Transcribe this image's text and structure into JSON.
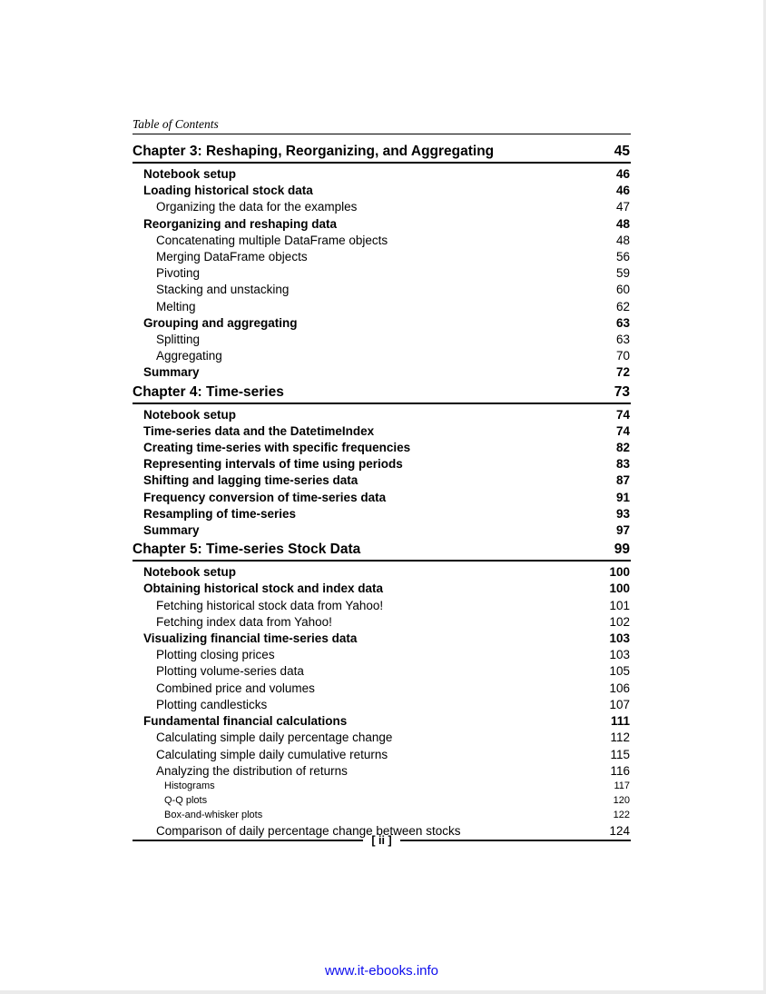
{
  "page": {
    "header_label": "Table of Contents",
    "footer_page_label": "[ ii ]",
    "footer_link": "www.it-ebooks.info",
    "text_color": "#000000",
    "link_color": "#0d0dee"
  },
  "toc": {
    "sections": [
      {
        "title": "Chapter 3: Reshaping, Reorganizing, and Aggregating",
        "page": "45",
        "entries": [
          {
            "level": 1,
            "label": "Notebook setup",
            "page": "46"
          },
          {
            "level": 1,
            "label": "Loading historical stock data",
            "page": "46"
          },
          {
            "level": 2,
            "label": "Organizing the data for the examples",
            "page": "47"
          },
          {
            "level": 1,
            "label": "Reorganizing and reshaping data",
            "page": "48"
          },
          {
            "level": 2,
            "label": "Concatenating multiple DataFrame objects",
            "page": "48"
          },
          {
            "level": 2,
            "label": "Merging DataFrame objects",
            "page": "56"
          },
          {
            "level": 2,
            "label": "Pivoting",
            "page": "59"
          },
          {
            "level": 2,
            "label": "Stacking and unstacking",
            "page": "60"
          },
          {
            "level": 2,
            "label": "Melting",
            "page": "62"
          },
          {
            "level": 1,
            "label": "Grouping and aggregating",
            "page": "63"
          },
          {
            "level": 2,
            "label": "Splitting",
            "page": "63"
          },
          {
            "level": 2,
            "label": "Aggregating",
            "page": "70"
          },
          {
            "level": 1,
            "label": "Summary",
            "page": "72"
          }
        ]
      },
      {
        "title": "Chapter 4: Time-series",
        "page": "73",
        "entries": [
          {
            "level": 1,
            "label": "Notebook setup",
            "page": "74"
          },
          {
            "level": 1,
            "label": "Time-series data and the DatetimeIndex",
            "page": "74"
          },
          {
            "level": 1,
            "label": "Creating time-series with specific frequencies",
            "page": "82"
          },
          {
            "level": 1,
            "label": "Representing intervals of time using periods",
            "page": "83"
          },
          {
            "level": 1,
            "label": "Shifting and lagging time-series data",
            "page": "87"
          },
          {
            "level": 1,
            "label": "Frequency conversion of time-series data",
            "page": "91"
          },
          {
            "level": 1,
            "label": "Resampling of time-series",
            "page": "93"
          },
          {
            "level": 1,
            "label": "Summary",
            "page": "97"
          }
        ]
      },
      {
        "title": "Chapter 5: Time-series Stock Data",
        "page": "99",
        "entries": [
          {
            "level": 1,
            "label": "Notebook setup",
            "page": "100"
          },
          {
            "level": 1,
            "label": "Obtaining historical stock and index data",
            "page": "100"
          },
          {
            "level": 2,
            "label": "Fetching historical stock data from Yahoo!",
            "page": "101"
          },
          {
            "level": 2,
            "label": "Fetching index data from Yahoo!",
            "page": "102"
          },
          {
            "level": 1,
            "label": "Visualizing financial time-series data",
            "page": "103"
          },
          {
            "level": 2,
            "label": "Plotting closing prices",
            "page": "103"
          },
          {
            "level": 2,
            "label": "Plotting volume-series data",
            "page": "105"
          },
          {
            "level": 2,
            "label": "Combined price and volumes",
            "page": "106"
          },
          {
            "level": 2,
            "label": "Plotting candlesticks",
            "page": "107"
          },
          {
            "level": 1,
            "label": "Fundamental financial calculations",
            "page": "111"
          },
          {
            "level": 2,
            "label": "Calculating simple daily percentage change",
            "page": "112"
          },
          {
            "level": 2,
            "label": "Calculating simple daily cumulative returns",
            "page": "115"
          },
          {
            "level": 2,
            "label": "Analyzing the distribution of returns",
            "page": "116"
          },
          {
            "level": 3,
            "label": "Histograms",
            "page": "117"
          },
          {
            "level": 3,
            "label": "Q-Q plots",
            "page": "120"
          },
          {
            "level": 3,
            "label": "Box-and-whisker plots",
            "page": "122"
          },
          {
            "level": 2,
            "label": "Comparison of daily percentage change between stocks",
            "page": "124"
          }
        ]
      }
    ]
  }
}
